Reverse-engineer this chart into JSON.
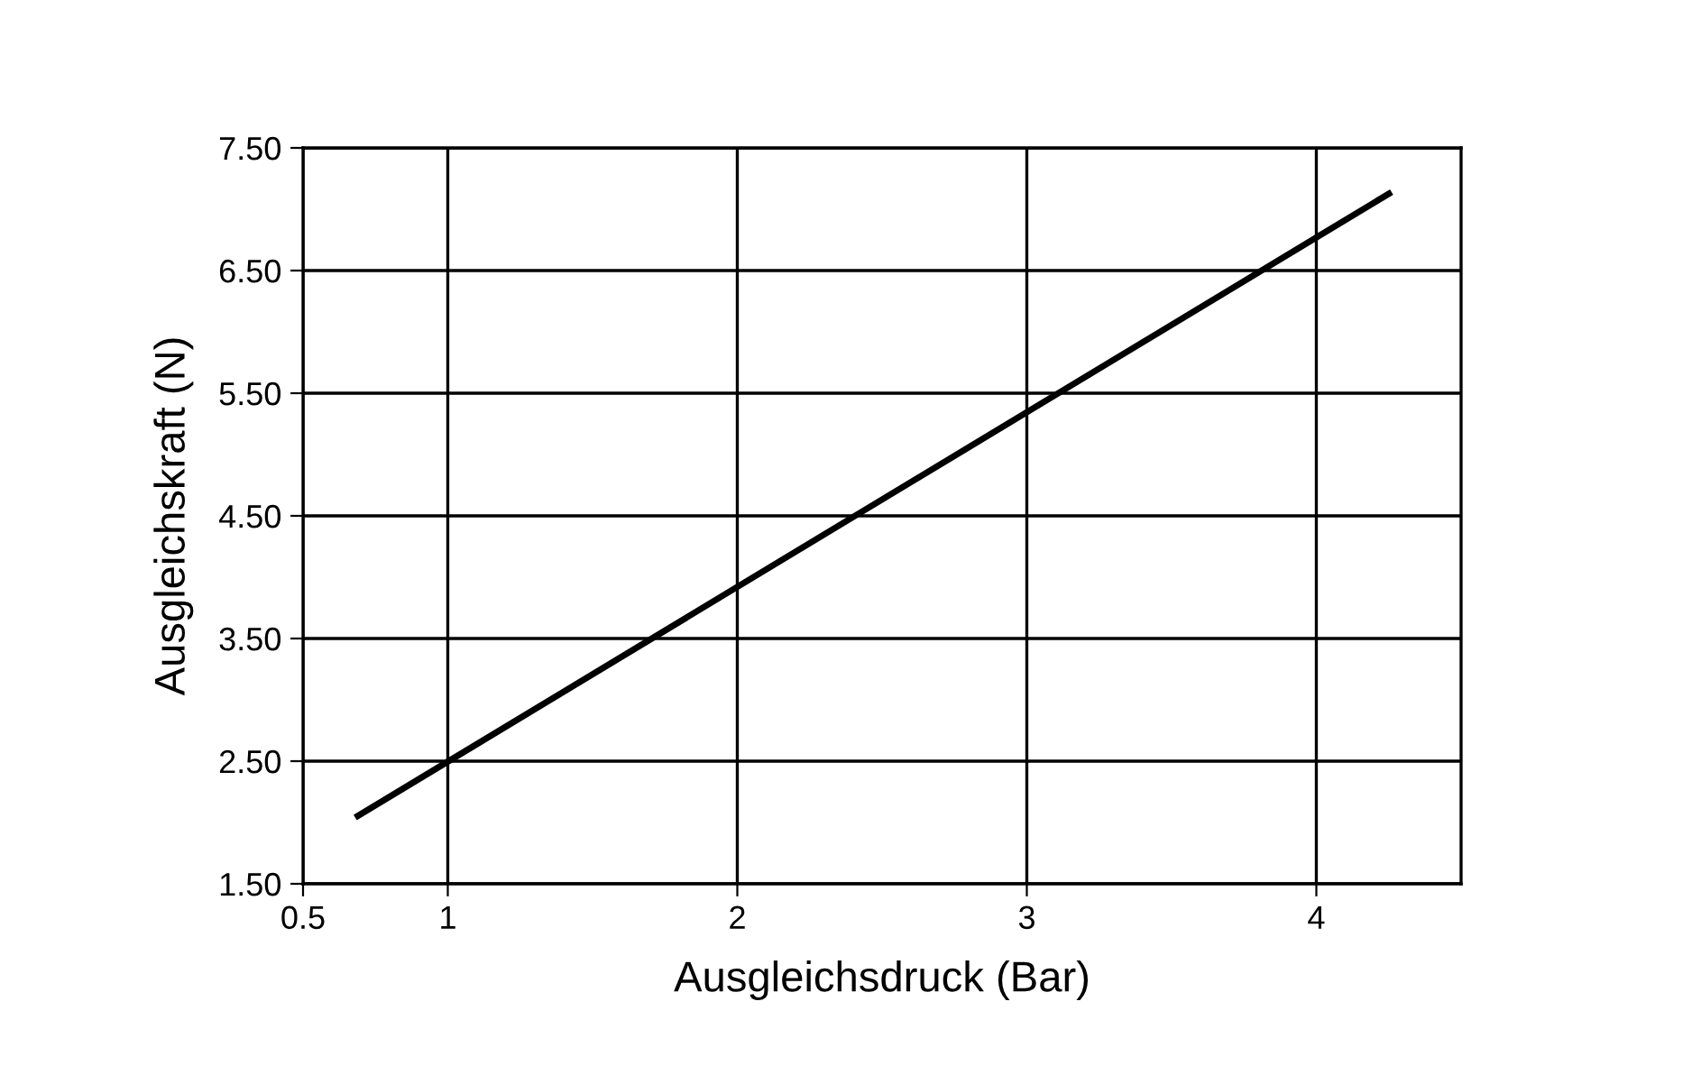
{
  "chart_data": {
    "type": "line",
    "xlabel": "Ausgleichsdruck (Bar)",
    "ylabel": "Ausgleichskraft (N)",
    "series": [
      {
        "color": "#000000",
        "x": [
          0.68,
          4.26
        ],
        "values": [
          2.04,
          7.14
        ]
      }
    ],
    "xlim": [
      0.5,
      4.5
    ],
    "xticks": [
      0.5,
      1,
      2,
      3,
      4
    ],
    "ylim": [
      1.5,
      7.5
    ],
    "yticks": [
      {
        "value": 1.5,
        "label": "1.50"
      },
      {
        "value": 2.5,
        "label": "2.50"
      },
      {
        "value": 3.5,
        "label": "3.50"
      },
      {
        "value": 4.5,
        "label": "4.50"
      },
      {
        "value": 5.5,
        "label": "5.50"
      },
      {
        "value": 6.5,
        "label": "6.50"
      },
      {
        "value": 7.5,
        "label": "7.50"
      }
    ],
    "grid": true,
    "marker": "none",
    "line_style": "solid"
  }
}
